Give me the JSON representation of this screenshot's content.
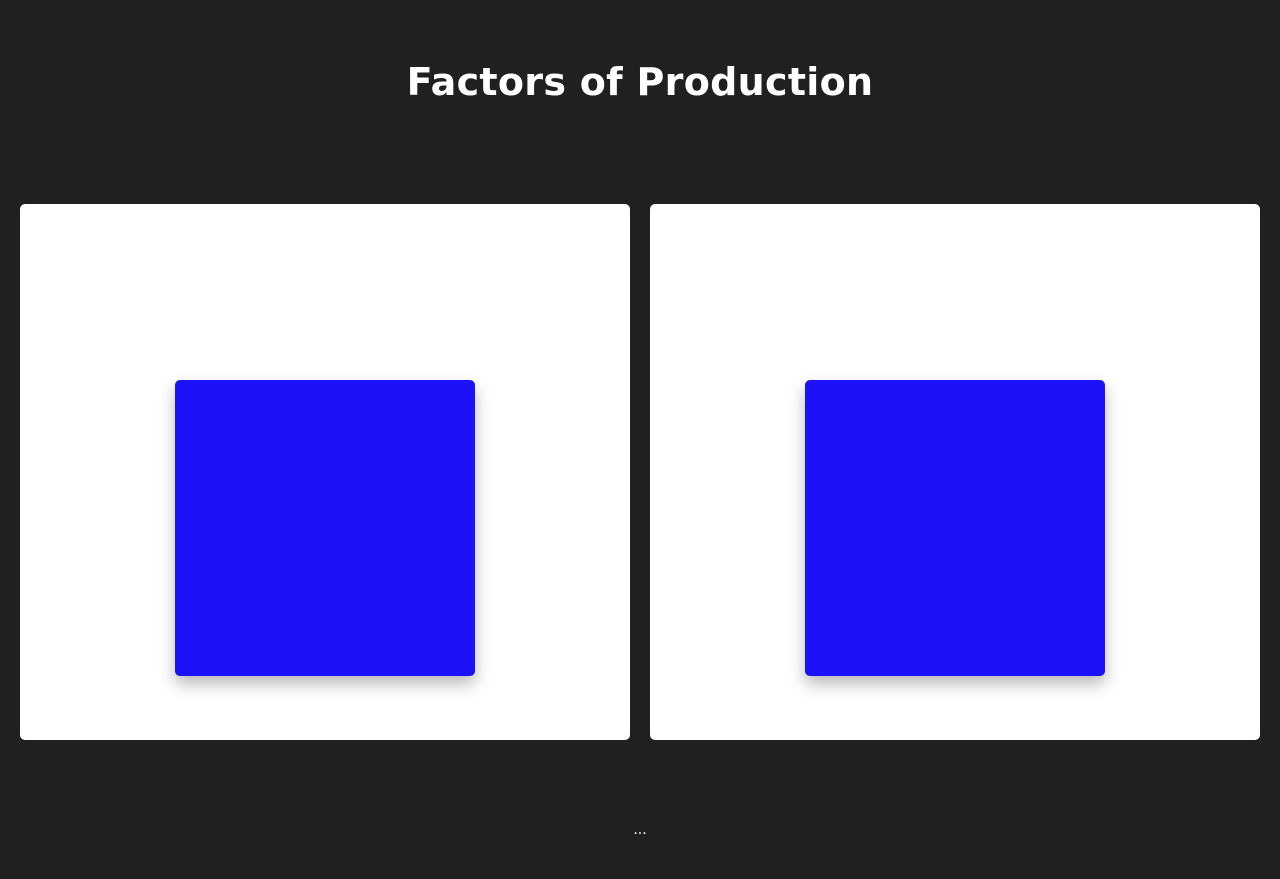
{
  "page": {
    "title": "Factors of Production",
    "footer_text": "...",
    "background_color": "#202020"
  },
  "cards": [
    {
      "image_color": "#1c11f7"
    },
    {
      "image_color": "#1c11f7"
    }
  ]
}
